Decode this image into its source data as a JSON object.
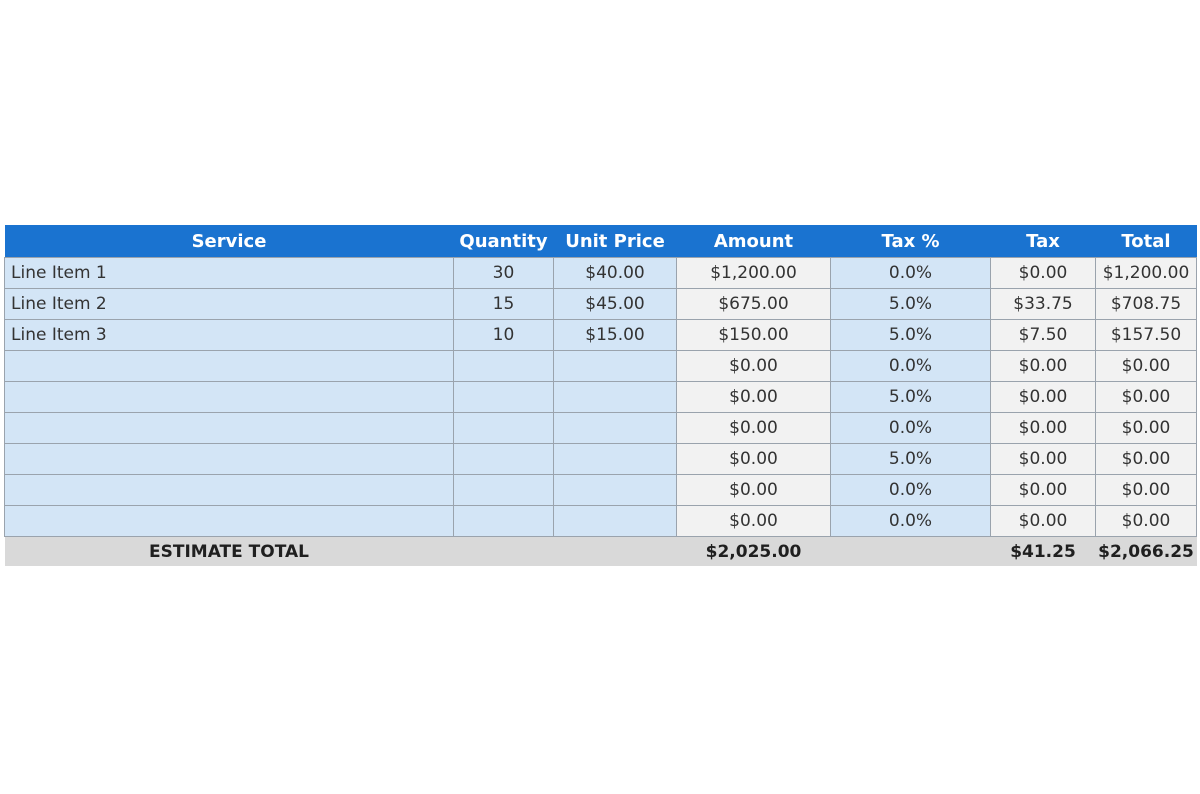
{
  "table": {
    "headers": [
      "Service",
      "Quantity",
      "Unit Price",
      "Amount",
      "Tax %",
      "Tax",
      "Total"
    ],
    "rows": [
      [
        "Line Item 1",
        "30",
        "$40.00",
        "$1,200.00",
        "0.0%",
        "$0.00",
        "$1,200.00"
      ],
      [
        "Line Item 2",
        "15",
        "$45.00",
        "$675.00",
        "5.0%",
        "$33.75",
        "$708.75"
      ],
      [
        "Line Item 3",
        "10",
        "$15.00",
        "$150.00",
        "5.0%",
        "$7.50",
        "$157.50"
      ],
      [
        "",
        "",
        "",
        "$0.00",
        "0.0%",
        "$0.00",
        "$0.00"
      ],
      [
        "",
        "",
        "",
        "$0.00",
        "5.0%",
        "$0.00",
        "$0.00"
      ],
      [
        "",
        "",
        "",
        "$0.00",
        "0.0%",
        "$0.00",
        "$0.00"
      ],
      [
        "",
        "",
        "",
        "$0.00",
        "5.0%",
        "$0.00",
        "$0.00"
      ],
      [
        "",
        "",
        "",
        "$0.00",
        "0.0%",
        "$0.00",
        "$0.00"
      ],
      [
        "",
        "",
        "",
        "$0.00",
        "0.0%",
        "$0.00",
        "$0.00"
      ]
    ],
    "footer": {
      "label": "ESTIMATE TOTAL",
      "amount": "$2,025.00",
      "tax": "$41.25",
      "total": "$2,066.25"
    }
  },
  "colors": {
    "header_bg": "#1a73d0",
    "input_cell_bg": "#d3e5f6",
    "calc_cell_bg": "#f2f2f2",
    "footer_bg": "#d9d9d9"
  }
}
